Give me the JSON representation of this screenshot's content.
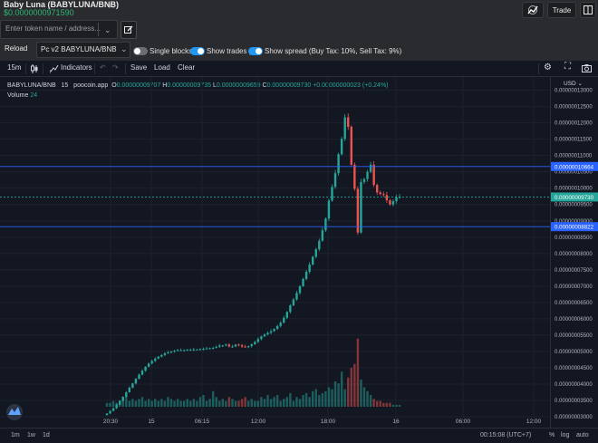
{
  "header": {
    "title": "Baby Luna (BABYLUNA/BNB)",
    "price": "$0.0000000971590",
    "trade_label": "Trade"
  },
  "search": {
    "placeholder": "Enter token name / address..."
  },
  "controls": {
    "reload_label": "Reload",
    "pair_value": "Pc v2 BABYLUNA/BNB",
    "single_blocks_label": "Single blocks",
    "show_trades_label": "Show trades |",
    "show_spread_label": "Show spread (Buy Tax: 10%, Sell Tax: 9%)",
    "single_blocks_on": false,
    "show_trades_on": true,
    "show_spread_on": true
  },
  "toolbar": {
    "interval": "15m",
    "indicators_label": "Indicators",
    "save_label": "Save",
    "load_label": "Load",
    "clear_label": "Clear"
  },
  "legend": {
    "symbol": "BABYLUNA/BNB",
    "interval": "15",
    "source": "poocoin.app",
    "o_label": "O",
    "o_value": "0.00000009707",
    "h_label": "H",
    "h_value": "0.00000009735",
    "l_label": "L",
    "l_value": "0.00000009659",
    "c_label": "C",
    "c_value": "0.00000009730",
    "change": "+0.00000000023 (+0.24%)",
    "volume_label": "Volume",
    "volume_value": "24"
  },
  "axis": {
    "currency": "USD",
    "tick_labels": [
      "0.00000013000",
      "0.00000012500",
      "0.00000012000",
      "0.00000011500",
      "0.00000011000",
      "0.00000010500",
      "0.00000010000",
      "0.00000009500",
      "0.00000009000",
      "0.00000008500",
      "0.00000008000",
      "0.00000007500",
      "0.00000007000",
      "0.00000006500",
      "0.00000006000",
      "0.00000005500",
      "0.00000005000",
      "0.00000004500",
      "0.00000004000",
      "0.00000003500",
      "0.00000003000"
    ],
    "price_tags": [
      {
        "label": "0.00000010664",
        "value": 1.0664e-07,
        "color": "#2962ff"
      },
      {
        "label": "0.00000009730",
        "value": 9.73e-08,
        "color": "#26a69a"
      },
      {
        "label": "0.00000008822",
        "value": 8.822e-08,
        "color": "#2962ff"
      }
    ],
    "x_labels": [
      "20:30",
      "15",
      "06:15",
      "12:00",
      "18:00",
      "16",
      "06:00",
      "12:00"
    ]
  },
  "bottom": {
    "ranges": [
      "1m",
      "1w",
      "1d"
    ],
    "time": "00:15:08 (UTC+7)",
    "percent": "%",
    "log": "log",
    "auto": "auto"
  },
  "colors": {
    "up": "#26a69a",
    "down": "#ef5350",
    "accent": "#2196f3",
    "price_green": "#2bb673"
  },
  "chart_data": {
    "type": "candlestick",
    "y_unit": "USD",
    "ylim": [
      3e-08,
      1.31e-07
    ],
    "closes": [
      3.1e-08,
      3.18e-08,
      3.26e-08,
      3.37e-08,
      3.49e-08,
      3.61e-08,
      3.75e-08,
      3.89e-08,
      4.02e-08,
      4.16e-08,
      4.29e-08,
      4.41e-08,
      4.53e-08,
      4.63e-08,
      4.71e-08,
      4.78e-08,
      4.84e-08,
      4.89e-08,
      4.94e-08,
      4.97e-08,
      5e-08,
      5.02e-08,
      5.04e-08,
      5.04e-08,
      5.04e-08,
      5.05e-08,
      5.05e-08,
      5.06e-08,
      5.06e-08,
      5.07e-08,
      5.08e-08,
      5.09e-08,
      5.1e-08,
      5.11e-08,
      5.14e-08,
      5.18e-08,
      5.18e-08,
      5.21e-08,
      5.15e-08,
      5.15e-08,
      5.21e-08,
      5.19e-08,
      5.15e-08,
      5.13e-08,
      5.16e-08,
      5.22e-08,
      5.29e-08,
      5.38e-08,
      5.46e-08,
      5.52e-08,
      5.57e-08,
      5.62e-08,
      5.69e-08,
      5.78e-08,
      5.88e-08,
      6.03e-08,
      6.21e-08,
      6.41e-08,
      6.59e-08,
      6.79e-08,
      7e-08,
      7.22e-08,
      7.44e-08,
      7.66e-08,
      7.9e-08,
      8.13e-08,
      8.39e-08,
      8.71e-08,
      9.07e-08,
      9.62e-08,
      1.004e-07,
      1.046e-07,
      1.104e-07,
      1.151e-07,
      1.217e-07,
      1.188e-07,
      1.072e-07,
      9.98e-08,
      8.64e-08,
      1.019e-07,
      1.028e-07,
      1.05e-07,
      1.072e-07,
      1.01e-07,
      9.87e-08,
      9.82e-08,
      9.79e-08,
      9.63e-08,
      9.5e-08,
      9.6e-08,
      9.72e-08,
      9.73e-08
    ],
    "volumes": [
      2,
      2,
      3,
      2,
      3,
      4,
      5,
      3,
      4,
      3,
      4,
      5,
      3,
      4,
      3,
      4,
      3,
      4,
      3,
      5,
      4,
      3,
      4,
      3,
      3,
      4,
      3,
      4,
      3,
      5,
      6,
      3,
      4,
      8,
      5,
      3,
      4,
      3,
      5,
      4,
      3,
      3,
      4,
      5,
      3,
      4,
      3,
      3,
      5,
      4,
      6,
      4,
      5,
      6,
      3,
      4,
      5,
      7,
      3,
      5,
      4,
      6,
      7,
      5,
      8,
      9,
      6,
      7,
      8,
      10,
      9,
      13,
      12,
      18,
      9,
      15,
      20,
      22,
      35,
      14,
      10,
      8,
      6,
      4,
      3,
      3,
      2,
      2,
      2,
      1,
      1,
      1
    ]
  }
}
